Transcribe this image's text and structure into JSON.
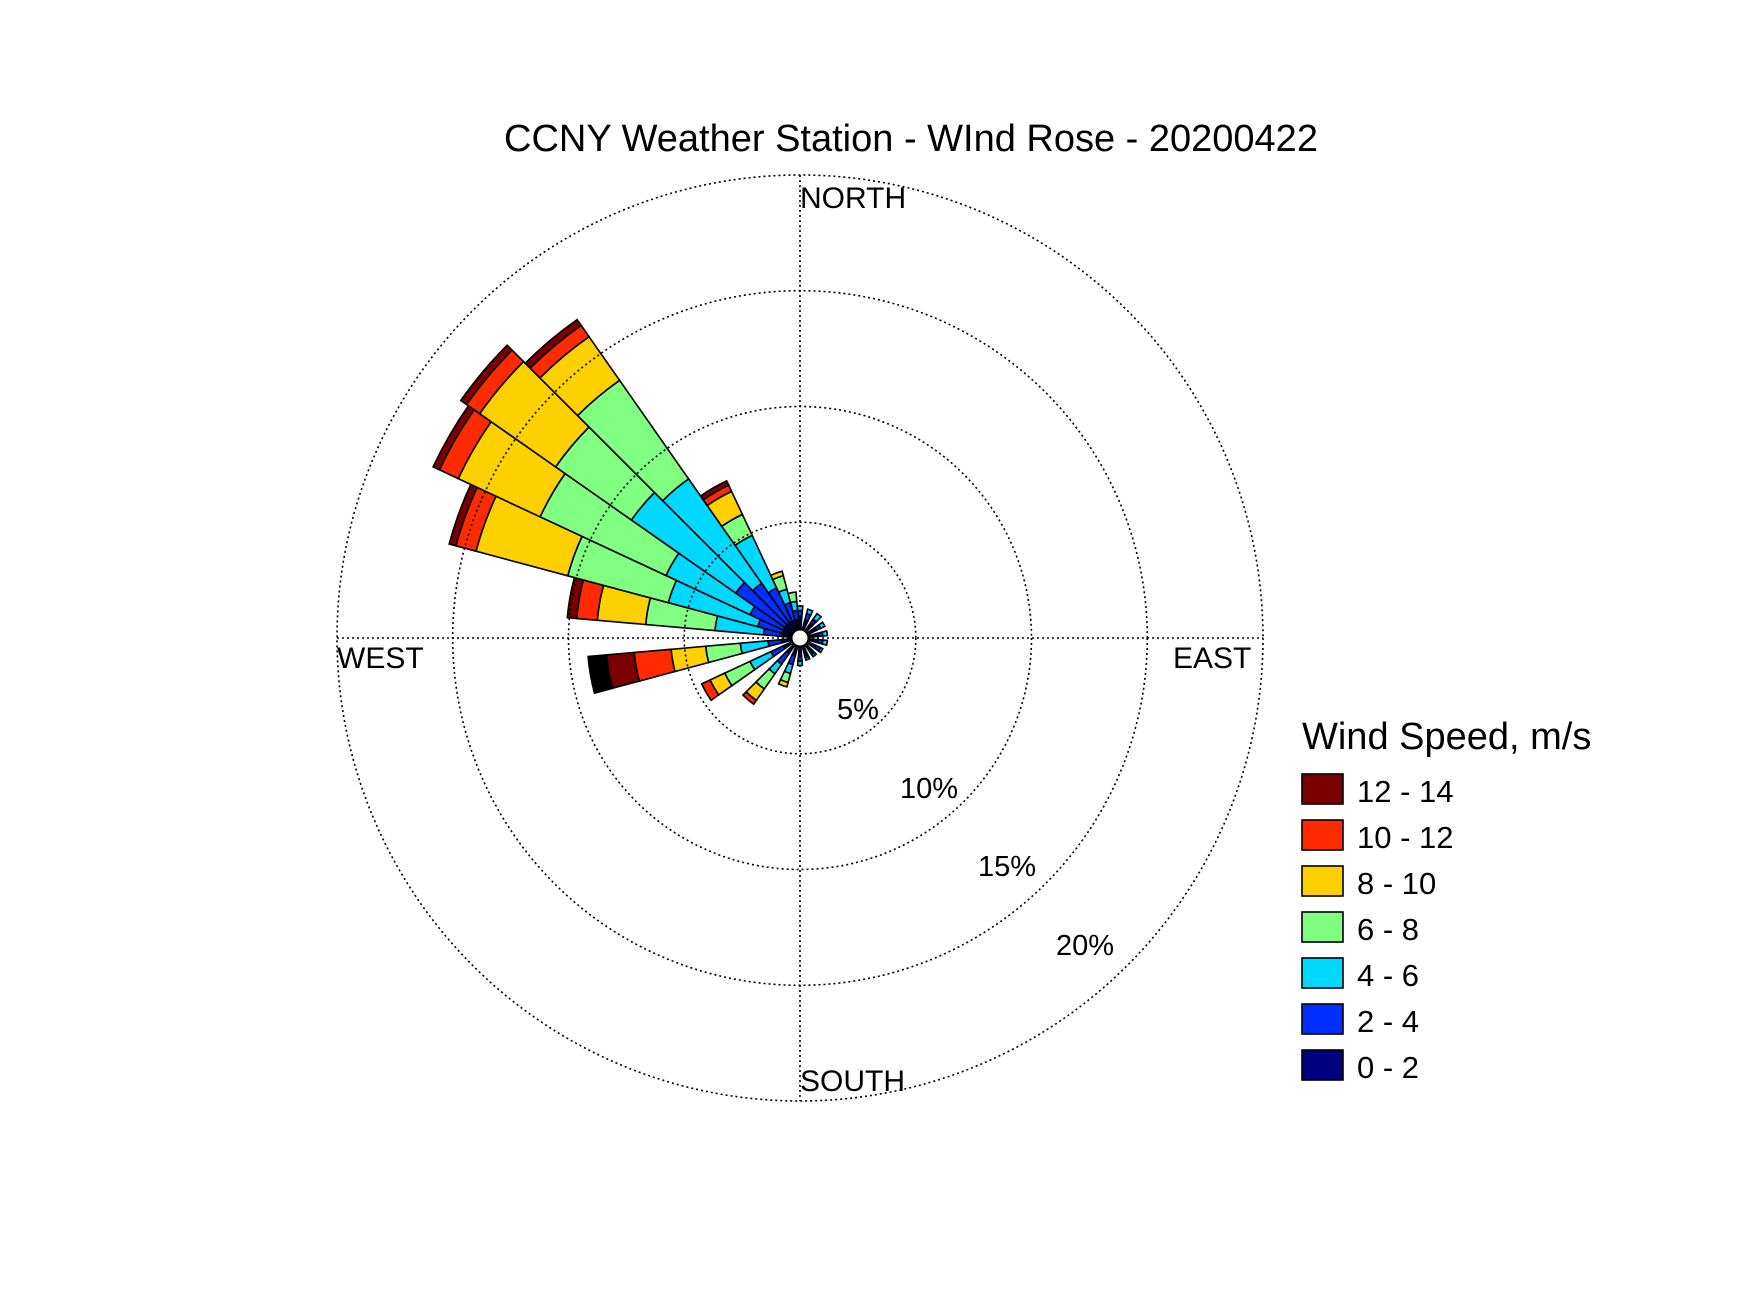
{
  "chart_data": {
    "type": "wind-rose",
    "title": "CCNY Weather Station - WInd Rose - 20200422",
    "directions": {
      "north": "NORTH",
      "south": "SOUTH",
      "east": "EAST",
      "west": "WEST"
    },
    "rings": [
      {
        "value": 5,
        "label": "5%"
      },
      {
        "value": 10,
        "label": "10%"
      },
      {
        "value": 15,
        "label": "15%"
      },
      {
        "value": 20,
        "label": "20%"
      }
    ],
    "radial_max": 20,
    "grid": true,
    "legend": {
      "title": "Wind Speed, m/s",
      "placement": "right",
      "bins": [
        {
          "label": "12 - 14",
          "color": "#7a0000"
        },
        {
          "label": "10 - 12",
          "color": "#ff2a00"
        },
        {
          "label": "8 - 10",
          "color": "#ffd000"
        },
        {
          "label": "6 - 8",
          "color": "#80ff80"
        },
        {
          "label": "4 - 6",
          "color": "#00d8ff"
        },
        {
          "label": "2 - 4",
          "color": "#0030ff"
        },
        {
          "label": "0 - 2",
          "color": "#000080"
        }
      ]
    },
    "bin_order_inner_to_outer": [
      "0 - 2",
      "2 - 4",
      "4 - 6",
      "6 - 8",
      "8 - 10",
      "10 - 12",
      "12 - 14"
    ],
    "sector_width_deg": 10,
    "sectors": [
      {
        "direction_deg": 0,
        "cumulative_percent": [
          0.5,
          0.8,
          1.0
        ]
      },
      {
        "direction_deg": 20,
        "cumulative_percent": [
          0.4,
          0.7,
          0.9
        ]
      },
      {
        "direction_deg": 40,
        "cumulative_percent": [
          0.4,
          0.6,
          0.9
        ]
      },
      {
        "direction_deg": 60,
        "cumulative_percent": [
          0.4,
          0.6,
          0.8
        ]
      },
      {
        "direction_deg": 80,
        "cumulative_percent": [
          0.4,
          0.6,
          0.8
        ]
      },
      {
        "direction_deg": 100,
        "cumulative_percent": [
          0.4,
          0.6,
          0.8
        ]
      },
      {
        "direction_deg": 120,
        "cumulative_percent": [
          0.4,
          0.6,
          0.7
        ]
      },
      {
        "direction_deg": 140,
        "cumulative_percent": [
          0.4,
          0.5,
          0.6
        ]
      },
      {
        "direction_deg": 160,
        "cumulative_percent": [
          0.4,
          0.5,
          0.6
        ]
      },
      {
        "direction_deg": 180,
        "cumulative_percent": [
          0.4,
          0.6,
          0.8
        ]
      },
      {
        "direction_deg": 200,
        "cumulative_percent": [
          0.4,
          0.8,
          1.2,
          1.6,
          1.8
        ]
      },
      {
        "direction_deg": 220,
        "cumulative_percent": [
          0.4,
          1.0,
          1.5,
          2.3,
          2.9,
          3.1
        ]
      },
      {
        "direction_deg": 240,
        "cumulative_percent": [
          0.4,
          1.0,
          2.0,
          3.2,
          3.9,
          4.3
        ]
      },
      {
        "direction_deg": 260,
        "cumulative_percent": [
          0.4,
          1.0,
          2.2,
          3.7,
          5.2,
          6.8,
          8.0,
          8.8
        ]
      },
      {
        "direction_deg": 280,
        "cumulative_percent": [
          0.4,
          1.2,
          3.3,
          6.3,
          8.4,
          9.3,
          9.7
        ]
      },
      {
        "direction_deg": 290,
        "cumulative_percent": [
          0.4,
          1.5,
          5.5,
          10.0,
          14.1,
          15.0,
          15.3
        ]
      },
      {
        "direction_deg": 300,
        "cumulative_percent": [
          0.4,
          2.0,
          6.0,
          12.0,
          15.9,
          16.8,
          17.1
        ]
      },
      {
        "direction_deg": 310,
        "cumulative_percent": [
          0.4,
          3.0,
          8.5,
          12.5,
          16.5,
          17.2,
          17.5
        ]
      },
      {
        "direction_deg": 320,
        "cumulative_percent": [
          0.4,
          2.5,
          8.0,
          13.2,
          15.5,
          16.1,
          16.4
        ]
      },
      {
        "direction_deg": 330,
        "cumulative_percent": [
          0.4,
          2.0,
          4.5,
          5.5,
          6.6,
          6.9,
          7.1
        ]
      },
      {
        "direction_deg": 340,
        "cumulative_percent": [
          0.4,
          1.2,
          1.8,
          2.4,
          2.6
        ]
      },
      {
        "direction_deg": 350,
        "cumulative_percent": [
          0.4,
          0.8,
          1.2,
          1.6
        ]
      }
    ]
  }
}
